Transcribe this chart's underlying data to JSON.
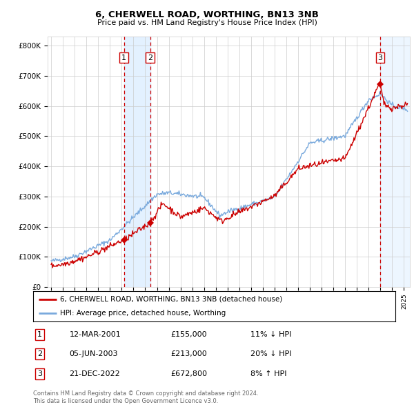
{
  "title": "6, CHERWELL ROAD, WORTHING, BN13 3NB",
  "subtitle": "Price paid vs. HM Land Registry's House Price Index (HPI)",
  "ylabel_ticks": [
    "£0",
    "£100K",
    "£200K",
    "£300K",
    "£400K",
    "£500K",
    "£600K",
    "£700K",
    "£800K"
  ],
  "ytick_values": [
    0,
    100000,
    200000,
    300000,
    400000,
    500000,
    600000,
    700000,
    800000
  ],
  "ylim": [
    0,
    830000
  ],
  "xlim_start": 1994.7,
  "xlim_end": 2025.5,
  "red_line_color": "#cc0000",
  "blue_line_color": "#7aaadd",
  "grid_color": "#cccccc",
  "background_color": "#ffffff",
  "shaded_region_color": "#ddeeff",
  "dashed_line_color": "#cc0000",
  "transactions": [
    {
      "id": 1,
      "date": "12-MAR-2001",
      "year": 2001.19,
      "price": 155000,
      "pct": "11%",
      "dir": "↓"
    },
    {
      "id": 2,
      "date": "05-JUN-2003",
      "year": 2003.43,
      "price": 213000,
      "pct": "20%",
      "dir": "↓"
    },
    {
      "id": 3,
      "date": "21-DEC-2022",
      "year": 2022.97,
      "price": 672800,
      "pct": "8%",
      "dir": "↑"
    }
  ],
  "legend_entries": [
    {
      "label": "6, CHERWELL ROAD, WORTHING, BN13 3NB (detached house)",
      "color": "#cc0000"
    },
    {
      "label": "HPI: Average price, detached house, Worthing",
      "color": "#7aaadd"
    }
  ],
  "footer": "Contains HM Land Registry data © Crown copyright and database right 2024.\nThis data is licensed under the Open Government Licence v3.0.",
  "xtick_years": [
    1995,
    1996,
    1997,
    1998,
    1999,
    2000,
    2001,
    2002,
    2003,
    2004,
    2005,
    2006,
    2007,
    2008,
    2009,
    2010,
    2011,
    2012,
    2013,
    2014,
    2015,
    2016,
    2017,
    2018,
    2019,
    2020,
    2021,
    2022,
    2023,
    2024,
    2025
  ]
}
